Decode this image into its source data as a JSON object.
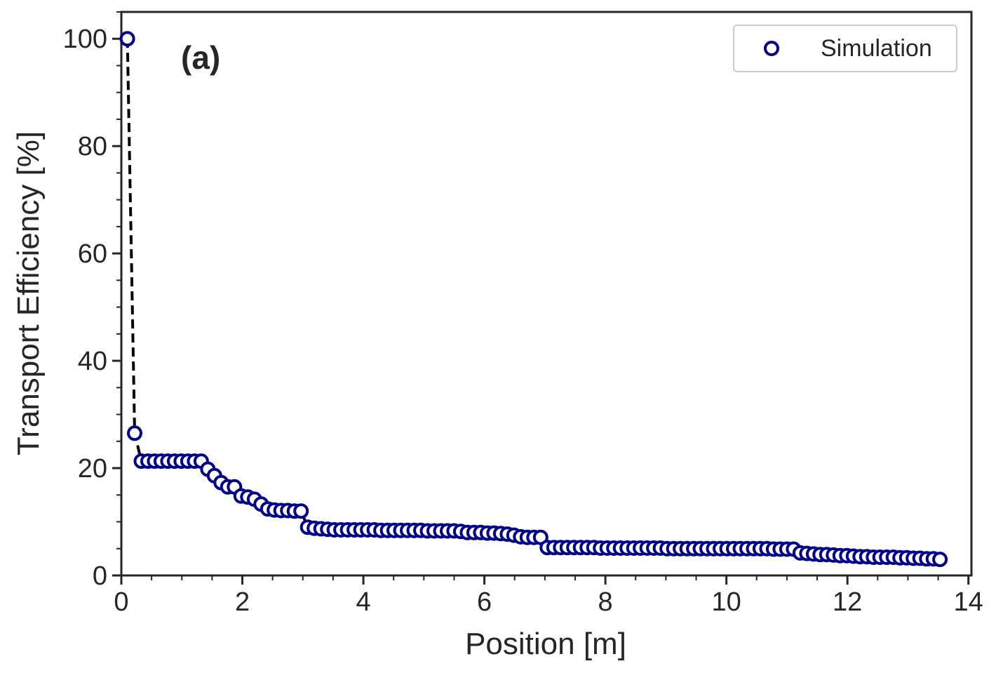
{
  "chart_data": {
    "type": "scatter",
    "title": "",
    "panel_label": "(a)",
    "xlabel": "Position [m]",
    "ylabel": "Transport Efficiency [%]",
    "xlim": [
      0,
      14.05
    ],
    "ylim": [
      0,
      105
    ],
    "xticks": [
      0,
      2,
      4,
      6,
      8,
      10,
      12,
      14
    ],
    "yticks": [
      0,
      20,
      40,
      60,
      80,
      100
    ],
    "x_minor_step": 0.5,
    "y_minor_step": 5,
    "grid": false,
    "legend": {
      "position": "top-right",
      "entries": [
        "Simulation"
      ]
    },
    "colors": {
      "marker_edge": "#00008b",
      "marker_face": "#ffffff",
      "line": "#000000",
      "axis": "#262626"
    },
    "series": [
      {
        "name": "Simulation",
        "marker": "open-circle",
        "line_style": "dashed",
        "x": [
          0.1,
          0.22,
          0.33,
          0.44,
          0.55,
          0.66,
          0.77,
          0.88,
          0.99,
          1.1,
          1.21,
          1.32,
          1.43,
          1.54,
          1.65,
          1.76,
          1.87,
          1.98,
          2.09,
          2.2,
          2.31,
          2.42,
          2.53,
          2.64,
          2.75,
          2.86,
          2.97,
          3.08,
          3.19,
          3.3,
          3.41,
          3.52,
          3.63,
          3.74,
          3.85,
          3.96,
          4.07,
          4.18,
          4.29,
          4.4,
          4.51,
          4.62,
          4.73,
          4.84,
          4.95,
          5.06,
          5.17,
          5.28,
          5.39,
          5.5,
          5.61,
          5.72,
          5.83,
          5.94,
          6.05,
          6.16,
          6.27,
          6.38,
          6.49,
          6.6,
          6.71,
          6.82,
          6.93,
          7.04,
          7.15,
          7.26,
          7.37,
          7.48,
          7.59,
          7.7,
          7.81,
          7.92,
          8.03,
          8.14,
          8.25,
          8.36,
          8.47,
          8.58,
          8.69,
          8.8,
          8.91,
          9.02,
          9.13,
          9.24,
          9.35,
          9.46,
          9.57,
          9.68,
          9.79,
          9.9,
          10.01,
          10.12,
          10.23,
          10.34,
          10.45,
          10.56,
          10.67,
          10.78,
          10.89,
          11.0,
          11.11,
          11.22,
          11.33,
          11.44,
          11.55,
          11.66,
          11.77,
          11.88,
          11.99,
          12.1,
          12.21,
          12.32,
          12.43,
          12.54,
          12.65,
          12.76,
          12.87,
          12.98,
          13.09,
          13.2,
          13.31,
          13.42,
          13.53
        ],
        "y": [
          100,
          26.5,
          21.3,
          21.3,
          21.3,
          21.3,
          21.3,
          21.3,
          21.3,
          21.3,
          21.3,
          21.3,
          19.8,
          18.6,
          17.3,
          16.5,
          16.5,
          14.8,
          14.6,
          14.2,
          13.3,
          12.4,
          12.2,
          12.1,
          12.1,
          12.0,
          12.0,
          9.0,
          8.8,
          8.7,
          8.6,
          8.5,
          8.5,
          8.5,
          8.5,
          8.5,
          8.5,
          8.5,
          8.4,
          8.4,
          8.4,
          8.4,
          8.4,
          8.4,
          8.4,
          8.3,
          8.3,
          8.3,
          8.3,
          8.3,
          8.2,
          8.0,
          8.0,
          8.0,
          7.9,
          7.9,
          7.8,
          7.7,
          7.5,
          7.2,
          7.1,
          7.1,
          7.1,
          5.2,
          5.2,
          5.2,
          5.2,
          5.2,
          5.2,
          5.2,
          5.2,
          5.1,
          5.1,
          5.1,
          5.1,
          5.1,
          5.1,
          5.1,
          5.1,
          5.1,
          5.1,
          5.0,
          5.0,
          5.0,
          5.0,
          5.0,
          5.0,
          5.0,
          5.0,
          5.0,
          5.0,
          5.0,
          5.0,
          5.0,
          5.0,
          5.0,
          5.0,
          4.9,
          4.9,
          4.9,
          4.9,
          4.2,
          4.1,
          4.0,
          3.9,
          3.9,
          3.8,
          3.7,
          3.7,
          3.6,
          3.5,
          3.5,
          3.4,
          3.4,
          3.4,
          3.4,
          3.3,
          3.3,
          3.2,
          3.2,
          3.1,
          3.1,
          3.0
        ]
      }
    ]
  }
}
